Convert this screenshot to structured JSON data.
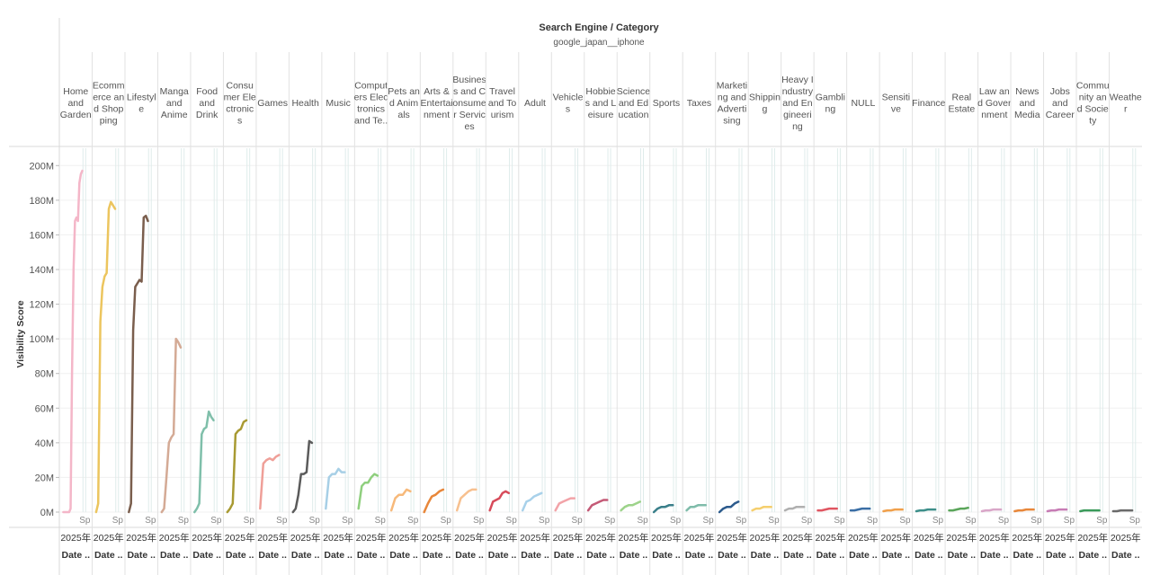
{
  "chart_data": {
    "type": "line",
    "title": "Search Engine / Category",
    "subtitle": "google_japan__iphone",
    "ylabel": "Visibility Score",
    "ylim": [
      0,
      210000000
    ],
    "yticks": [
      {
        "value": 0,
        "label": "0M"
      },
      {
        "value": 20000000,
        "label": "20M"
      },
      {
        "value": 40000000,
        "label": "40M"
      },
      {
        "value": 60000000,
        "label": "60M"
      },
      {
        "value": 80000000,
        "label": "80M"
      },
      {
        "value": 100000000,
        "label": "100M"
      },
      {
        "value": 120000000,
        "label": "120M"
      },
      {
        "value": 140000000,
        "label": "140M"
      },
      {
        "value": 160000000,
        "label": "160M"
      },
      {
        "value": 180000000,
        "label": "180M"
      },
      {
        "value": 200000000,
        "label": "200M"
      }
    ],
    "panel_footer_line1": "2025年",
    "panel_footer_line2": "Date ..",
    "panel_marker": "Sp",
    "panels": [
      {
        "label": [
          "Home",
          "and",
          "Garden"
        ],
        "color": "#f4b6c8",
        "values": [
          0,
          0,
          0,
          0,
          0,
          2,
          80,
          140,
          168,
          170,
          168,
          190,
          195,
          197
        ]
      },
      {
        "label": [
          "Ecomm",
          "erce an",
          "d Shop",
          "ping"
        ],
        "color": "#ecc55e",
        "values": [
          0,
          5,
          110,
          130,
          136,
          138,
          175,
          179,
          177,
          175
        ]
      },
      {
        "label": [
          "Lifestyl",
          "e"
        ],
        "color": "#7a5e4d",
        "values": [
          0,
          5,
          105,
          130,
          132,
          134,
          133,
          170,
          171,
          168
        ]
      },
      {
        "label": [
          "Manga",
          "and",
          "Anime"
        ],
        "color": "#d4aa95",
        "values": [
          0,
          2,
          20,
          40,
          43,
          45,
          100,
          98,
          95
        ]
      },
      {
        "label": [
          "Food",
          "and",
          "Drink"
        ],
        "color": "#7fbfaa",
        "values": [
          0,
          2,
          5,
          45,
          48,
          49,
          58,
          55,
          53
        ]
      },
      {
        "label": [
          "Consu",
          "mer Ele",
          "ctronic",
          "s"
        ],
        "color": "#a89a32",
        "values": [
          0,
          2,
          5,
          45,
          47,
          48,
          52,
          53
        ]
      },
      {
        "label": [
          "Games"
        ],
        "color": "#ef9f98",
        "values": [
          2,
          28,
          30,
          31,
          30,
          32,
          33
        ]
      },
      {
        "label": [
          "Health"
        ],
        "color": "#5b5b5b",
        "values": [
          0,
          2,
          10,
          22,
          22,
          23,
          41,
          40
        ]
      },
      {
        "label": [
          "Music"
        ],
        "color": "#a7cfe6",
        "values": [
          2,
          20,
          22,
          22,
          25,
          23,
          23
        ]
      },
      {
        "label": [
          "Comput",
          "ers Elec",
          "tronics",
          "and Te.."
        ],
        "color": "#8fcf7e",
        "values": [
          2,
          15,
          17,
          17,
          20,
          22,
          21
        ]
      },
      {
        "label": [
          "Pets an",
          "d Anim",
          "als"
        ],
        "color": "#f7b97a",
        "values": [
          1,
          8,
          10,
          10,
          13,
          12
        ]
      },
      {
        "label": [
          "Arts &",
          "Entertai",
          "nment"
        ],
        "color": "#e8873a",
        "values": [
          0,
          5,
          9,
          10,
          12,
          13
        ]
      },
      {
        "label": [
          "Busines",
          "s and C",
          "onsume",
          "r Servic",
          "es"
        ],
        "color": "#f7c08f",
        "values": [
          1,
          8,
          10,
          12,
          13,
          13
        ]
      },
      {
        "label": [
          "Travel",
          "and To",
          "urism"
        ],
        "color": "#d74b5a",
        "values": [
          1,
          6,
          7,
          8,
          11,
          12,
          11
        ]
      },
      {
        "label": [
          "Adult"
        ],
        "color": "#a8d1ea",
        "values": [
          1,
          6,
          7,
          9,
          10,
          11
        ]
      },
      {
        "label": [
          "Vehicle",
          "s"
        ],
        "color": "#f2a3a8",
        "values": [
          1,
          5,
          6,
          7,
          8,
          8
        ]
      },
      {
        "label": [
          "Hobbie",
          "s and L",
          "eisure"
        ],
        "color": "#c45a77",
        "values": [
          1,
          4,
          5,
          6,
          7,
          7
        ]
      },
      {
        "label": [
          "Science",
          "and Ed",
          "ucation"
        ],
        "color": "#9dd38a",
        "values": [
          1,
          3,
          4,
          4,
          5,
          6
        ]
      },
      {
        "label": [
          "Sports"
        ],
        "color": "#3a7f8a",
        "values": [
          0,
          2,
          3,
          3,
          4,
          4
        ]
      },
      {
        "label": [
          "Taxes"
        ],
        "color": "#7fbcaa",
        "values": [
          1,
          3,
          3,
          4,
          4,
          4
        ]
      },
      {
        "label": [
          "Marketi",
          "ng and",
          "Adverti",
          "sing"
        ],
        "color": "#2b5a8c",
        "values": [
          0,
          2,
          3,
          3,
          5,
          6
        ]
      },
      {
        "label": [
          "Shippin",
          "g"
        ],
        "color": "#f5cf6e",
        "values": [
          1,
          2,
          2,
          3,
          3,
          3
        ]
      },
      {
        "label": [
          "Heavy I",
          "ndustry",
          "and En",
          "gineeri",
          "ng"
        ],
        "color": "#b0b0b0",
        "values": [
          1,
          2,
          2,
          3,
          3,
          3
        ]
      },
      {
        "label": [
          "Gambli",
          "ng"
        ],
        "color": "#e05561",
        "values": [
          1,
          1,
          1.5,
          2,
          2,
          2
        ]
      },
      {
        "label": [
          "NULL"
        ],
        "color": "#3a6ea5",
        "values": [
          1,
          1,
          1.5,
          2,
          2,
          2
        ]
      },
      {
        "label": [
          "Sensiti",
          "ve"
        ],
        "color": "#f0a04b",
        "values": [
          0.5,
          1,
          1,
          1.5,
          1.5,
          1.5
        ]
      },
      {
        "label": [
          "Finance"
        ],
        "color": "#3d8f8a",
        "values": [
          0.5,
          1,
          1,
          1.5,
          1.5,
          1.5
        ]
      },
      {
        "label": [
          "Real",
          "Estate"
        ],
        "color": "#5aa55a",
        "values": [
          1,
          1,
          1.5,
          2,
          2,
          2.5
        ]
      },
      {
        "label": [
          "Law an",
          "d Gover",
          "nment"
        ],
        "color": "#d9a6c8",
        "values": [
          0.5,
          1,
          1,
          1.5,
          1.5,
          1.5
        ]
      },
      {
        "label": [
          "News",
          "and",
          "Media"
        ],
        "color": "#e8873a",
        "values": [
          0.5,
          1,
          1,
          1.5,
          1.5,
          1.5
        ]
      },
      {
        "label": [
          "Jobs",
          "and",
          "Career"
        ],
        "color": "#c77cb5",
        "values": [
          0.5,
          1,
          1,
          1.5,
          1.5,
          1.5
        ]
      },
      {
        "label": [
          "Commu",
          "nity an",
          "d Socie",
          "ty"
        ],
        "color": "#3a9a5a",
        "values": [
          0.5,
          1,
          1,
          1,
          1,
          1
        ]
      },
      {
        "label": [
          "Weathe",
          "r"
        ],
        "color": "#6a6a6a",
        "values": [
          0.5,
          0.5,
          1,
          1,
          1,
          1
        ]
      }
    ]
  }
}
